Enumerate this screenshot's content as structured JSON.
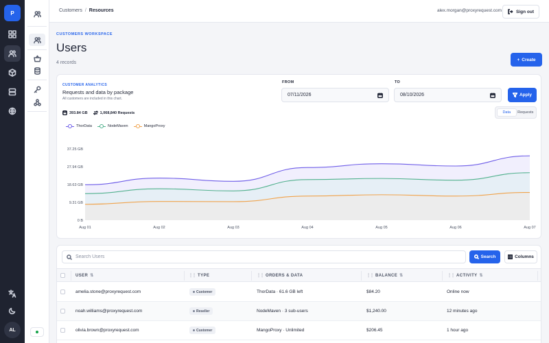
{
  "rail": {
    "logo": "P",
    "avatar": "AL",
    "icons": [
      "dashboard-icon",
      "users-icon",
      "box-icon",
      "server-icon",
      "globe-icon",
      "translate-icon",
      "moon-icon"
    ]
  },
  "topbar": {
    "breadcrumb": [
      "Customers",
      "Resources"
    ],
    "email": "alex.morgan@proxyrequest.com",
    "signout": "Sign out"
  },
  "page": {
    "eyebrow": "CUSTOMERS WORKSPACE",
    "title": "Users",
    "count": "4 records",
    "create": "Create"
  },
  "analytics": {
    "eyebrow": "CUSTOMER ANALYTICS",
    "title": "Requests and data by package",
    "note": "All customers are included in this chart.",
    "from_label": "FROM",
    "from_value": "07/11/2026",
    "to_label": "TO",
    "to_value": "08/10/2026",
    "apply": "Apply",
    "total_data": "393.84 GB",
    "total_requests": "1,068,840 Requests",
    "toggle": [
      "Data",
      "Requests"
    ]
  },
  "chart_data": {
    "type": "area",
    "x": [
      "Aug 01",
      "Aug 02",
      "Aug 03",
      "Aug 04",
      "Aug 05",
      "Aug 06",
      "Aug 07"
    ],
    "ylim": [
      0,
      37.25
    ],
    "yticks": [
      "0 B",
      "9.31 GB",
      "18.63 GB",
      "27.94 GB",
      "37.25 GB"
    ],
    "legend_position": "top-left",
    "series": [
      {
        "name": "ThorData",
        "color": "#6d5ce8",
        "fill": "#f1effd",
        "values": [
          18.5,
          22.0,
          20.3,
          27.5,
          29.5,
          28.3,
          33.6
        ]
      },
      {
        "name": "NodeMaven",
        "color": "#4fb08c",
        "fill": "#e6eff6",
        "values": [
          13.9,
          16.4,
          15.3,
          21.2,
          21.8,
          20.9,
          24.8
        ]
      },
      {
        "name": "MangoProxy",
        "color": "#f0a24a",
        "fill": "#ececec",
        "values": [
          8.3,
          9.8,
          9.7,
          12.6,
          13.3,
          12.6,
          14.5
        ]
      }
    ]
  },
  "users": {
    "search_placeholder": "Search Users",
    "search_button": "Search",
    "columns_button": "Columns",
    "headers": [
      "USER",
      "TYPE",
      "ORDERS & DATA",
      "BALANCE",
      "ACTIVITY"
    ],
    "rows": [
      {
        "user": "amelia.stone@proxyrequest.com",
        "type": "Customer",
        "orders": "ThorData · 61.6 GB left",
        "balance": "$84.20",
        "activity": "Online now"
      },
      {
        "user": "noah.williams@proxyrequest.com",
        "type": "Reseller",
        "orders": "NodeMaven · 3 sub-users",
        "balance": "$1,240.00",
        "activity": "12 minutes ago"
      },
      {
        "user": "olivia.brown@proxyrequest.com",
        "type": "Customer",
        "orders": "MangoProxy · Unlimited",
        "balance": "$206.45",
        "activity": "1 hour ago"
      }
    ]
  }
}
